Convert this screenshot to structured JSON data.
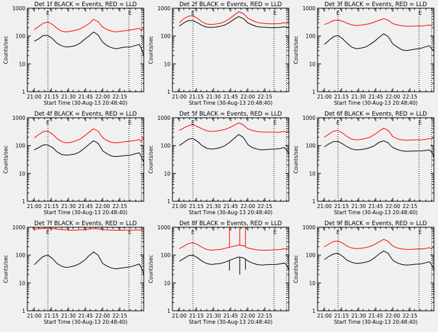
{
  "figure": {
    "start_time_label": "Start Time (30-Aug-13 20:48:40)",
    "y_axis_label": "Counts/sec",
    "flag_glyph": "E"
  },
  "colors": {
    "background": "#f0f0f0",
    "events": "#000000",
    "lld": "#ff0000",
    "axes": "#000000"
  },
  "chart_data": [
    {
      "type": "line",
      "title": "Det 1f BLACK = Events, RED = LLD",
      "xlabel": "Start Time (30-Aug-13 20:48:40)",
      "ylabel": "Counts/sec",
      "yscale": "log",
      "ylim": [
        1,
        1000
      ],
      "yticks": [
        "1",
        "10",
        "100",
        "1000"
      ],
      "xticks": [
        "21:00",
        "21:15",
        "21:30",
        "21:45",
        "22:00",
        "22:15"
      ],
      "x_minutes": [
        0,
        4,
        8,
        12,
        16,
        20,
        24,
        28,
        32,
        36,
        40,
        44,
        48,
        52,
        56,
        58,
        60,
        64,
        68,
        72,
        76,
        80,
        84,
        88,
        92,
        94,
        96
      ],
      "dotted_markers_minutes": [
        12,
        83,
        94
      ],
      "flag_markers_minutes": [
        12,
        84
      ],
      "series": [
        {
          "color": "red",
          "values": [
            170,
            220,
            290,
            320,
            260,
            190,
            150,
            140,
            150,
            160,
            180,
            220,
            280,
            400,
            330,
            260,
            210,
            170,
            150,
            140,
            150,
            155,
            165,
            175,
            190,
            160,
            190
          ]
        },
        {
          "color": "black",
          "values": [
            65,
            80,
            105,
            105,
            80,
            55,
            45,
            40,
            42,
            45,
            55,
            75,
            100,
            140,
            110,
            80,
            60,
            45,
            38,
            35,
            38,
            40,
            40,
            45,
            50,
            35,
            20
          ]
        }
      ]
    },
    {
      "type": "line",
      "title": "Det 2f BLACK = Events, RED = LLD",
      "xlabel": "Start Time (30-Aug-13 20:48:40)",
      "ylabel": "Counts/sec",
      "yscale": "log",
      "ylim": [
        1,
        1000
      ],
      "yticks": [
        "1",
        "10",
        "100",
        "1000"
      ],
      "xticks": [
        "21:00",
        "21:15",
        "21:30",
        "21:45",
        "22:00",
        "22:15"
      ],
      "x_minutes": [
        0,
        4,
        8,
        12,
        16,
        20,
        24,
        28,
        32,
        36,
        40,
        44,
        48,
        52,
        56,
        58,
        60,
        64,
        68,
        72,
        76,
        80,
        84,
        88,
        92,
        94,
        96
      ],
      "dotted_markers_minutes": [
        12,
        83,
        94
      ],
      "flag_markers_minutes": [
        12,
        84
      ],
      "series": [
        {
          "color": "red",
          "values": [
            300,
            420,
            520,
            540,
            430,
            320,
            270,
            260,
            270,
            290,
            330,
            420,
            560,
            750,
            650,
            540,
            440,
            360,
            310,
            290,
            280,
            275,
            275,
            280,
            300,
            290,
            350
          ]
        },
        {
          "color": "black",
          "values": [
            230,
            300,
            360,
            360,
            300,
            240,
            210,
            205,
            210,
            225,
            250,
            310,
            400,
            500,
            430,
            360,
            300,
            250,
            220,
            210,
            205,
            200,
            200,
            205,
            215,
            205,
            210
          ]
        }
      ]
    },
    {
      "type": "line",
      "title": "Det 3f BLACK = Events, RED = LLD",
      "xlabel": "Start Time (30-Aug-13 20:48:40)",
      "ylabel": "Counts/sec",
      "yscale": "log",
      "ylim": [
        1,
        1000
      ],
      "yticks": [
        "1",
        "10",
        "100",
        "1000"
      ],
      "xticks": [
        "21:00",
        "21:15",
        "21:30",
        "21:45",
        "22:00",
        "22:15"
      ],
      "x_minutes": [
        0,
        4,
        8,
        12,
        16,
        20,
        24,
        28,
        32,
        36,
        40,
        44,
        48,
        52,
        56,
        58,
        60,
        64,
        68,
        72,
        76,
        80,
        84,
        88,
        92,
        94,
        96
      ],
      "dotted_markers_minutes": [
        12,
        83,
        94
      ],
      "flag_markers_minutes": [
        12,
        84
      ],
      "series": [
        {
          "color": "red",
          "values": [
            260,
            300,
            360,
            380,
            340,
            290,
            250,
            240,
            245,
            260,
            280,
            320,
            370,
            420,
            370,
            320,
            280,
            250,
            235,
            225,
            225,
            230,
            230,
            235,
            250,
            240,
            260
          ]
        },
        {
          "color": "black",
          "values": [
            50,
            70,
            95,
            105,
            80,
            55,
            40,
            35,
            37,
            40,
            50,
            65,
            90,
            120,
            95,
            70,
            52,
            40,
            32,
            30,
            32,
            34,
            36,
            40,
            45,
            35,
            30
          ]
        }
      ]
    },
    {
      "type": "line",
      "title": "Det 4f BLACK = Events, RED = LLD",
      "xlabel": "Start Time (30-Aug-13 20:48:40)",
      "ylabel": "Counts/sec",
      "yscale": "log",
      "ylim": [
        1,
        1000
      ],
      "yticks": [
        "1",
        "10",
        "100",
        "1000"
      ],
      "xticks": [
        "21:00",
        "21:15",
        "21:30",
        "21:45",
        "22:00",
        "22:15"
      ],
      "x_minutes": [
        0,
        4,
        8,
        12,
        16,
        20,
        24,
        28,
        32,
        36,
        40,
        44,
        48,
        52,
        56,
        58,
        60,
        64,
        68,
        72,
        76,
        80,
        84,
        88,
        92,
        94,
        96
      ],
      "dotted_markers_minutes": [
        12,
        83,
        94
      ],
      "flag_markers_minutes": [
        12,
        84
      ],
      "series": [
        {
          "color": "red",
          "values": [
            190,
            250,
            320,
            330,
            260,
            180,
            140,
            125,
            130,
            145,
            170,
            220,
            300,
            400,
            330,
            250,
            190,
            150,
            130,
            125,
            130,
            140,
            145,
            150,
            165,
            140,
            200
          ]
        },
        {
          "color": "black",
          "values": [
            70,
            85,
            105,
            105,
            85,
            60,
            48,
            45,
            47,
            50,
            60,
            80,
            110,
            150,
            120,
            90,
            65,
            50,
            42,
            40,
            42,
            44,
            45,
            50,
            55,
            40,
            25
          ]
        }
      ]
    },
    {
      "type": "line",
      "title": "Det 5f BLACK = Events, RED = LLD",
      "xlabel": "Start Time (30-Aug-13 20:48:40)",
      "ylabel": "Counts/sec",
      "yscale": "log",
      "ylim": [
        1,
        1000
      ],
      "yticks": [
        "1",
        "10",
        "100",
        "1000"
      ],
      "xticks": [
        "21:00",
        "21:15",
        "21:30",
        "21:45",
        "22:00",
        "22:15"
      ],
      "x_minutes": [
        0,
        4,
        8,
        12,
        16,
        20,
        24,
        28,
        32,
        36,
        40,
        44,
        48,
        52,
        56,
        58,
        60,
        64,
        68,
        72,
        76,
        80,
        84,
        88,
        92,
        94,
        96
      ],
      "dotted_markers_minutes": [
        12,
        83,
        94
      ],
      "flag_markers_minutes": [
        12,
        84
      ],
      "series": [
        {
          "color": "red",
          "values": [
            350,
            430,
            520,
            560,
            480,
            400,
            340,
            320,
            330,
            350,
            380,
            440,
            530,
            650,
            560,
            470,
            400,
            350,
            320,
            310,
            305,
            305,
            300,
            305,
            320,
            300,
            340
          ]
        },
        {
          "color": "black",
          "values": [
            100,
            130,
            170,
            180,
            140,
            100,
            80,
            75,
            78,
            85,
            100,
            130,
            180,
            250,
            200,
            150,
            110,
            85,
            75,
            70,
            72,
            74,
            75,
            78,
            85,
            70,
            50
          ]
        }
      ]
    },
    {
      "type": "line",
      "title": "Det 6f BLACK = Events, RED = LLD",
      "xlabel": "Start Time (30-Aug-13 20:48:40)",
      "ylabel": "Counts/sec",
      "yscale": "log",
      "ylim": [
        1,
        1000
      ],
      "yticks": [
        "1",
        "10",
        "100",
        "1000"
      ],
      "xticks": [
        "21:00",
        "21:15",
        "21:30",
        "21:45",
        "22:00",
        "22:15"
      ],
      "x_minutes": [
        0,
        4,
        8,
        12,
        16,
        20,
        24,
        28,
        32,
        36,
        40,
        44,
        48,
        52,
        56,
        58,
        60,
        64,
        68,
        72,
        76,
        80,
        84,
        88,
        92,
        94,
        96
      ],
      "dotted_markers_minutes": [
        12,
        83,
        94
      ],
      "flag_markers_minutes": [
        12,
        84
      ],
      "series": [
        {
          "color": "red",
          "values": [
            200,
            260,
            330,
            350,
            280,
            210,
            170,
            160,
            165,
            180,
            200,
            250,
            330,
            420,
            350,
            270,
            210,
            175,
            160,
            155,
            158,
            160,
            160,
            165,
            180,
            170,
            200
          ]
        },
        {
          "color": "black",
          "values": [
            90,
            115,
            140,
            140,
            115,
            90,
            75,
            70,
            72,
            76,
            85,
            100,
            130,
            150,
            125,
            100,
            85,
            72,
            65,
            62,
            63,
            64,
            64,
            66,
            70,
            60,
            40
          ]
        }
      ]
    },
    {
      "type": "line",
      "title": "Det 7f BLACK = Events, RED = LLD",
      "xlabel": "Start Time (30-Aug-13 20:48:40)",
      "ylabel": "Counts/sec",
      "yscale": "log",
      "ylim": [
        1,
        1000
      ],
      "yticks": [
        "1",
        "10",
        "100",
        "1000"
      ],
      "xticks": [
        "21:00",
        "21:15",
        "21:30",
        "21:45",
        "22:00",
        "22:15"
      ],
      "x_minutes": [
        0,
        4,
        8,
        12,
        16,
        20,
        24,
        28,
        32,
        36,
        40,
        44,
        48,
        52,
        56,
        58,
        60,
        64,
        68,
        72,
        76,
        80,
        84,
        88,
        92,
        94,
        96
      ],
      "dotted_markers_minutes": [
        12,
        83,
        94
      ],
      "flag_markers_minutes": [
        12,
        84
      ],
      "series": [
        {
          "color": "red",
          "values": [
            850,
            880,
            900,
            920,
            900,
            860,
            820,
            800,
            790,
            790,
            800,
            820,
            860,
            900,
            880,
            850,
            820,
            800,
            790,
            780,
            780,
            790,
            790,
            795,
            800,
            780,
            820
          ]
        },
        {
          "color": "black",
          "values": [
            45,
            65,
            90,
            100,
            75,
            50,
            40,
            36,
            38,
            42,
            50,
            65,
            95,
            130,
            100,
            70,
            50,
            40,
            34,
            32,
            34,
            36,
            38,
            42,
            48,
            35,
            20
          ]
        }
      ]
    },
    {
      "type": "line",
      "title": "Det 8f BLACK = Events, RED = LLD",
      "xlabel": "Start Time (30-Aug-13 20:48:40)",
      "ylabel": "Counts/sec",
      "yscale": "log",
      "ylim": [
        1,
        1000
      ],
      "yticks": [
        "1",
        "10",
        "100",
        "1000"
      ],
      "xticks": [
        "21:00",
        "21:15",
        "21:30",
        "21:45",
        "22:00",
        "22:15"
      ],
      "x_minutes": [
        0,
        4,
        8,
        12,
        16,
        20,
        24,
        28,
        32,
        36,
        40,
        44,
        48,
        52,
        56,
        58,
        60,
        64,
        68,
        72,
        76,
        80,
        84,
        88,
        92,
        94,
        96
      ],
      "dotted_markers_minutes": [
        12,
        83,
        94
      ],
      "flag_markers_minutes": [
        12,
        84
      ],
      "series": [
        {
          "color": "red",
          "values": [
            170,
            210,
            260,
            280,
            240,
            190,
            160,
            150,
            155,
            160,
            175,
            190,
            210,
            230,
            220,
            200,
            180,
            165,
            155,
            150,
            150,
            152,
            155,
            158,
            170,
            160,
            180
          ]
        },
        {
          "color": "black",
          "values": [
            60,
            75,
            95,
            100,
            80,
            60,
            50,
            46,
            48,
            50,
            55,
            65,
            75,
            85,
            80,
            72,
            62,
            52,
            46,
            44,
            45,
            46,
            46,
            48,
            52,
            45,
            30
          ]
        }
      ],
      "spikes": {
        "red_spike_minutes": [
          44,
          53,
          58
        ],
        "red_spike_value": 1000,
        "black_dropouts": [
          {
            "minute": 44,
            "value": 28
          },
          {
            "minute": 53,
            "value": 20
          },
          {
            "minute": 58,
            "value": 30
          }
        ]
      }
    },
    {
      "type": "line",
      "title": "Det 9f BLACK = Events, RED = LLD",
      "xlabel": "Start Time (30-Aug-13 20:48:40)",
      "ylabel": "Counts/sec",
      "yscale": "log",
      "ylim": [
        1,
        1000
      ],
      "yticks": [
        "1",
        "10",
        "100",
        "1000"
      ],
      "xticks": [
        "21:00",
        "21:15",
        "21:30",
        "21:45",
        "22:00",
        "22:15"
      ],
      "x_minutes": [
        0,
        4,
        8,
        12,
        16,
        20,
        24,
        28,
        32,
        36,
        40,
        44,
        48,
        52,
        56,
        58,
        60,
        64,
        68,
        72,
        76,
        80,
        84,
        88,
        92,
        94,
        96
      ],
      "dotted_markers_minutes": [
        12,
        83,
        94
      ],
      "flag_markers_minutes": [
        12,
        84
      ],
      "series": [
        {
          "color": "red",
          "values": [
            200,
            250,
            310,
            320,
            270,
            210,
            180,
            170,
            175,
            185,
            205,
            240,
            300,
            370,
            310,
            250,
            210,
            180,
            165,
            160,
            160,
            165,
            165,
            170,
            185,
            170,
            200
          ]
        },
        {
          "color": "black",
          "values": [
            70,
            90,
            110,
            115,
            90,
            65,
            55,
            50,
            52,
            55,
            62,
            80,
            110,
            140,
            115,
            85,
            65,
            52,
            46,
            44,
            45,
            47,
            48,
            52,
            58,
            45,
            30
          ]
        }
      ]
    }
  ]
}
